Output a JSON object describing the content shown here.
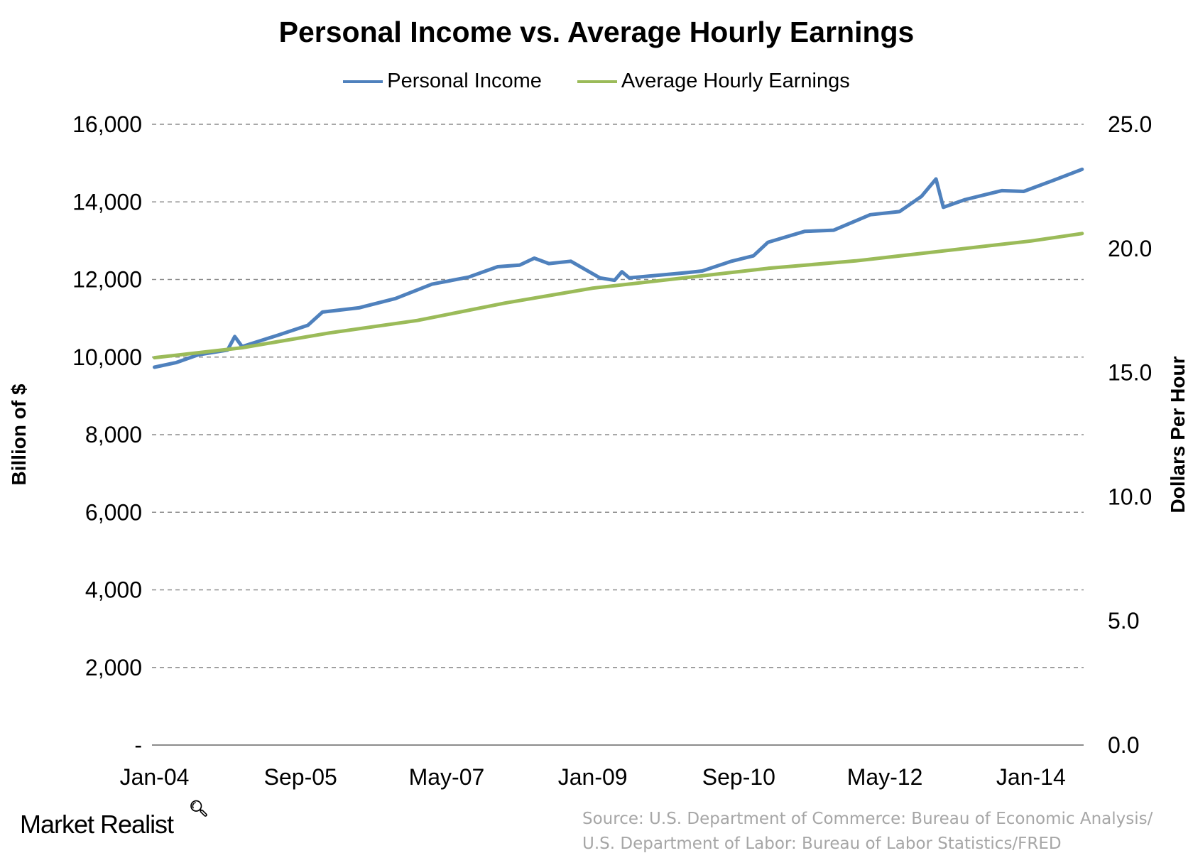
{
  "chart_data": {
    "type": "line",
    "title": "Personal Income vs. Average Hourly Earnings",
    "ylabel_left": "Billion of $",
    "ylabel_right": "Dollars Per Hour",
    "ylim_left": [
      0,
      16000
    ],
    "ylim_right": [
      0,
      25
    ],
    "yticks_left": [
      "-",
      "2,000",
      "4,000",
      "6,000",
      "8,000",
      "10,000",
      "12,000",
      "14,000",
      "16,000"
    ],
    "yticks_right": [
      "0.0",
      "5.0",
      "10.0",
      "15.0",
      "20.0",
      "25.0"
    ],
    "xlim": [
      "2004-01",
      "2014-08"
    ],
    "xticks": [
      {
        "date": "2004-01",
        "label": "Jan-04"
      },
      {
        "date": "2005-09",
        "label": "Sep-05"
      },
      {
        "date": "2007-05",
        "label": "May-07"
      },
      {
        "date": "2009-01",
        "label": "Jan-09"
      },
      {
        "date": "2010-09",
        "label": "Sep-10"
      },
      {
        "date": "2012-05",
        "label": "May-12"
      },
      {
        "date": "2014-01",
        "label": "Jan-14"
      }
    ],
    "grid": "horizontal dashed",
    "legend_position": "top",
    "series": [
      {
        "name": "Personal Income",
        "axis": "left",
        "color": "#4f81bd",
        "points": [
          [
            "2004-01",
            9740
          ],
          [
            "2004-04",
            9860
          ],
          [
            "2004-07",
            10060
          ],
          [
            "2004-11",
            10180
          ],
          [
            "2004-12",
            10530
          ],
          [
            "2005-01",
            10270
          ],
          [
            "2005-06",
            10570
          ],
          [
            "2005-10",
            10820
          ],
          [
            "2005-12",
            11160
          ],
          [
            "2006-05",
            11270
          ],
          [
            "2006-10",
            11510
          ],
          [
            "2007-03",
            11880
          ],
          [
            "2007-08",
            12060
          ],
          [
            "2007-12",
            12330
          ],
          [
            "2008-03",
            12370
          ],
          [
            "2008-05",
            12550
          ],
          [
            "2008-07",
            12410
          ],
          [
            "2008-10",
            12470
          ],
          [
            "2009-02",
            12040
          ],
          [
            "2009-04",
            11980
          ],
          [
            "2009-05",
            12200
          ],
          [
            "2009-06",
            12040
          ],
          [
            "2010-02",
            12180
          ],
          [
            "2010-04",
            12220
          ],
          [
            "2010-08",
            12470
          ],
          [
            "2010-11",
            12610
          ],
          [
            "2011-01",
            12960
          ],
          [
            "2011-06",
            13240
          ],
          [
            "2011-10",
            13270
          ],
          [
            "2012-03",
            13670
          ],
          [
            "2012-07",
            13750
          ],
          [
            "2012-10",
            14140
          ],
          [
            "2012-12",
            14590
          ],
          [
            "2013-01",
            13860
          ],
          [
            "2013-04",
            14060
          ],
          [
            "2013-09",
            14290
          ],
          [
            "2013-12",
            14270
          ],
          [
            "2014-04",
            14550
          ],
          [
            "2014-08",
            14840
          ]
        ]
      },
      {
        "name": "Average Hourly Earnings",
        "axis": "right",
        "color": "#9bbb59",
        "points": [
          [
            "2004-01",
            15.6
          ],
          [
            "2004-07",
            15.8
          ],
          [
            "2005-01",
            16.0
          ],
          [
            "2006-01",
            16.6
          ],
          [
            "2007-01",
            17.1
          ],
          [
            "2008-01",
            17.8
          ],
          [
            "2009-01",
            18.4
          ],
          [
            "2010-01",
            18.8
          ],
          [
            "2011-01",
            19.2
          ],
          [
            "2012-01",
            19.5
          ],
          [
            "2013-01",
            19.9
          ],
          [
            "2014-01",
            20.3
          ],
          [
            "2014-08",
            20.6
          ]
        ]
      }
    ]
  },
  "branding": {
    "logo": "Market Realist"
  },
  "source": {
    "line1": "Source: U.S. Department of Commerce: Bureau of Economic Analysis/",
    "line2": "U.S. Department of Labor: Bureau of Labor Statistics/FRED"
  }
}
